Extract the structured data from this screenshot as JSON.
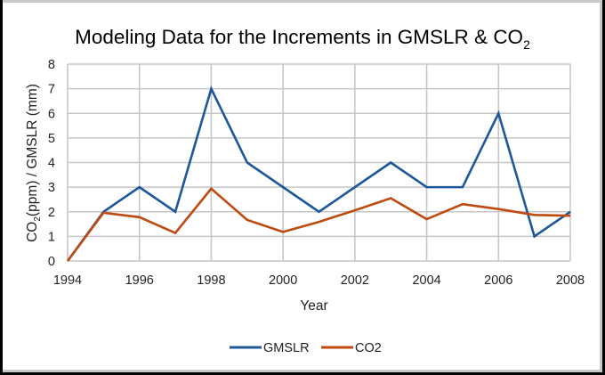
{
  "chart_data": {
    "type": "line",
    "title": "Modeling Data for the Increments in GMSLR & CO",
    "title_subscript": "2",
    "xlabel": "Year",
    "ylabel": {
      "prefix": "CO",
      "subscript": "2",
      "suffix": "(ppm) / GMSLR (mm)"
    },
    "x": [
      1994,
      1995,
      1996,
      1997,
      1998,
      1999,
      2000,
      2001,
      2002,
      2003,
      2004,
      2005,
      2006,
      2007,
      2008
    ],
    "xlim": [
      1994,
      2008
    ],
    "x_ticks": [
      "1994",
      "1996",
      "1998",
      "2000",
      "2002",
      "2004",
      "2006",
      "2008"
    ],
    "ylim": [
      0,
      8
    ],
    "y_ticks": [
      "0",
      "1",
      "2",
      "3",
      "4",
      "5",
      "6",
      "7",
      "8"
    ],
    "grid": true,
    "legend_position": "bottom",
    "series": [
      {
        "name": "GMSLR",
        "color": "#1f5897",
        "values": [
          0,
          2,
          3,
          2,
          7,
          4,
          3,
          2,
          3,
          4,
          3,
          3,
          6,
          1,
          2
        ]
      },
      {
        "name": "CO2",
        "color": "#bf4a0f",
        "values": [
          0,
          1.96,
          1.78,
          1.14,
          2.94,
          1.67,
          1.18,
          1.59,
          2.06,
          2.55,
          1.7,
          2.31,
          2.11,
          1.87,
          1.84
        ]
      }
    ]
  }
}
